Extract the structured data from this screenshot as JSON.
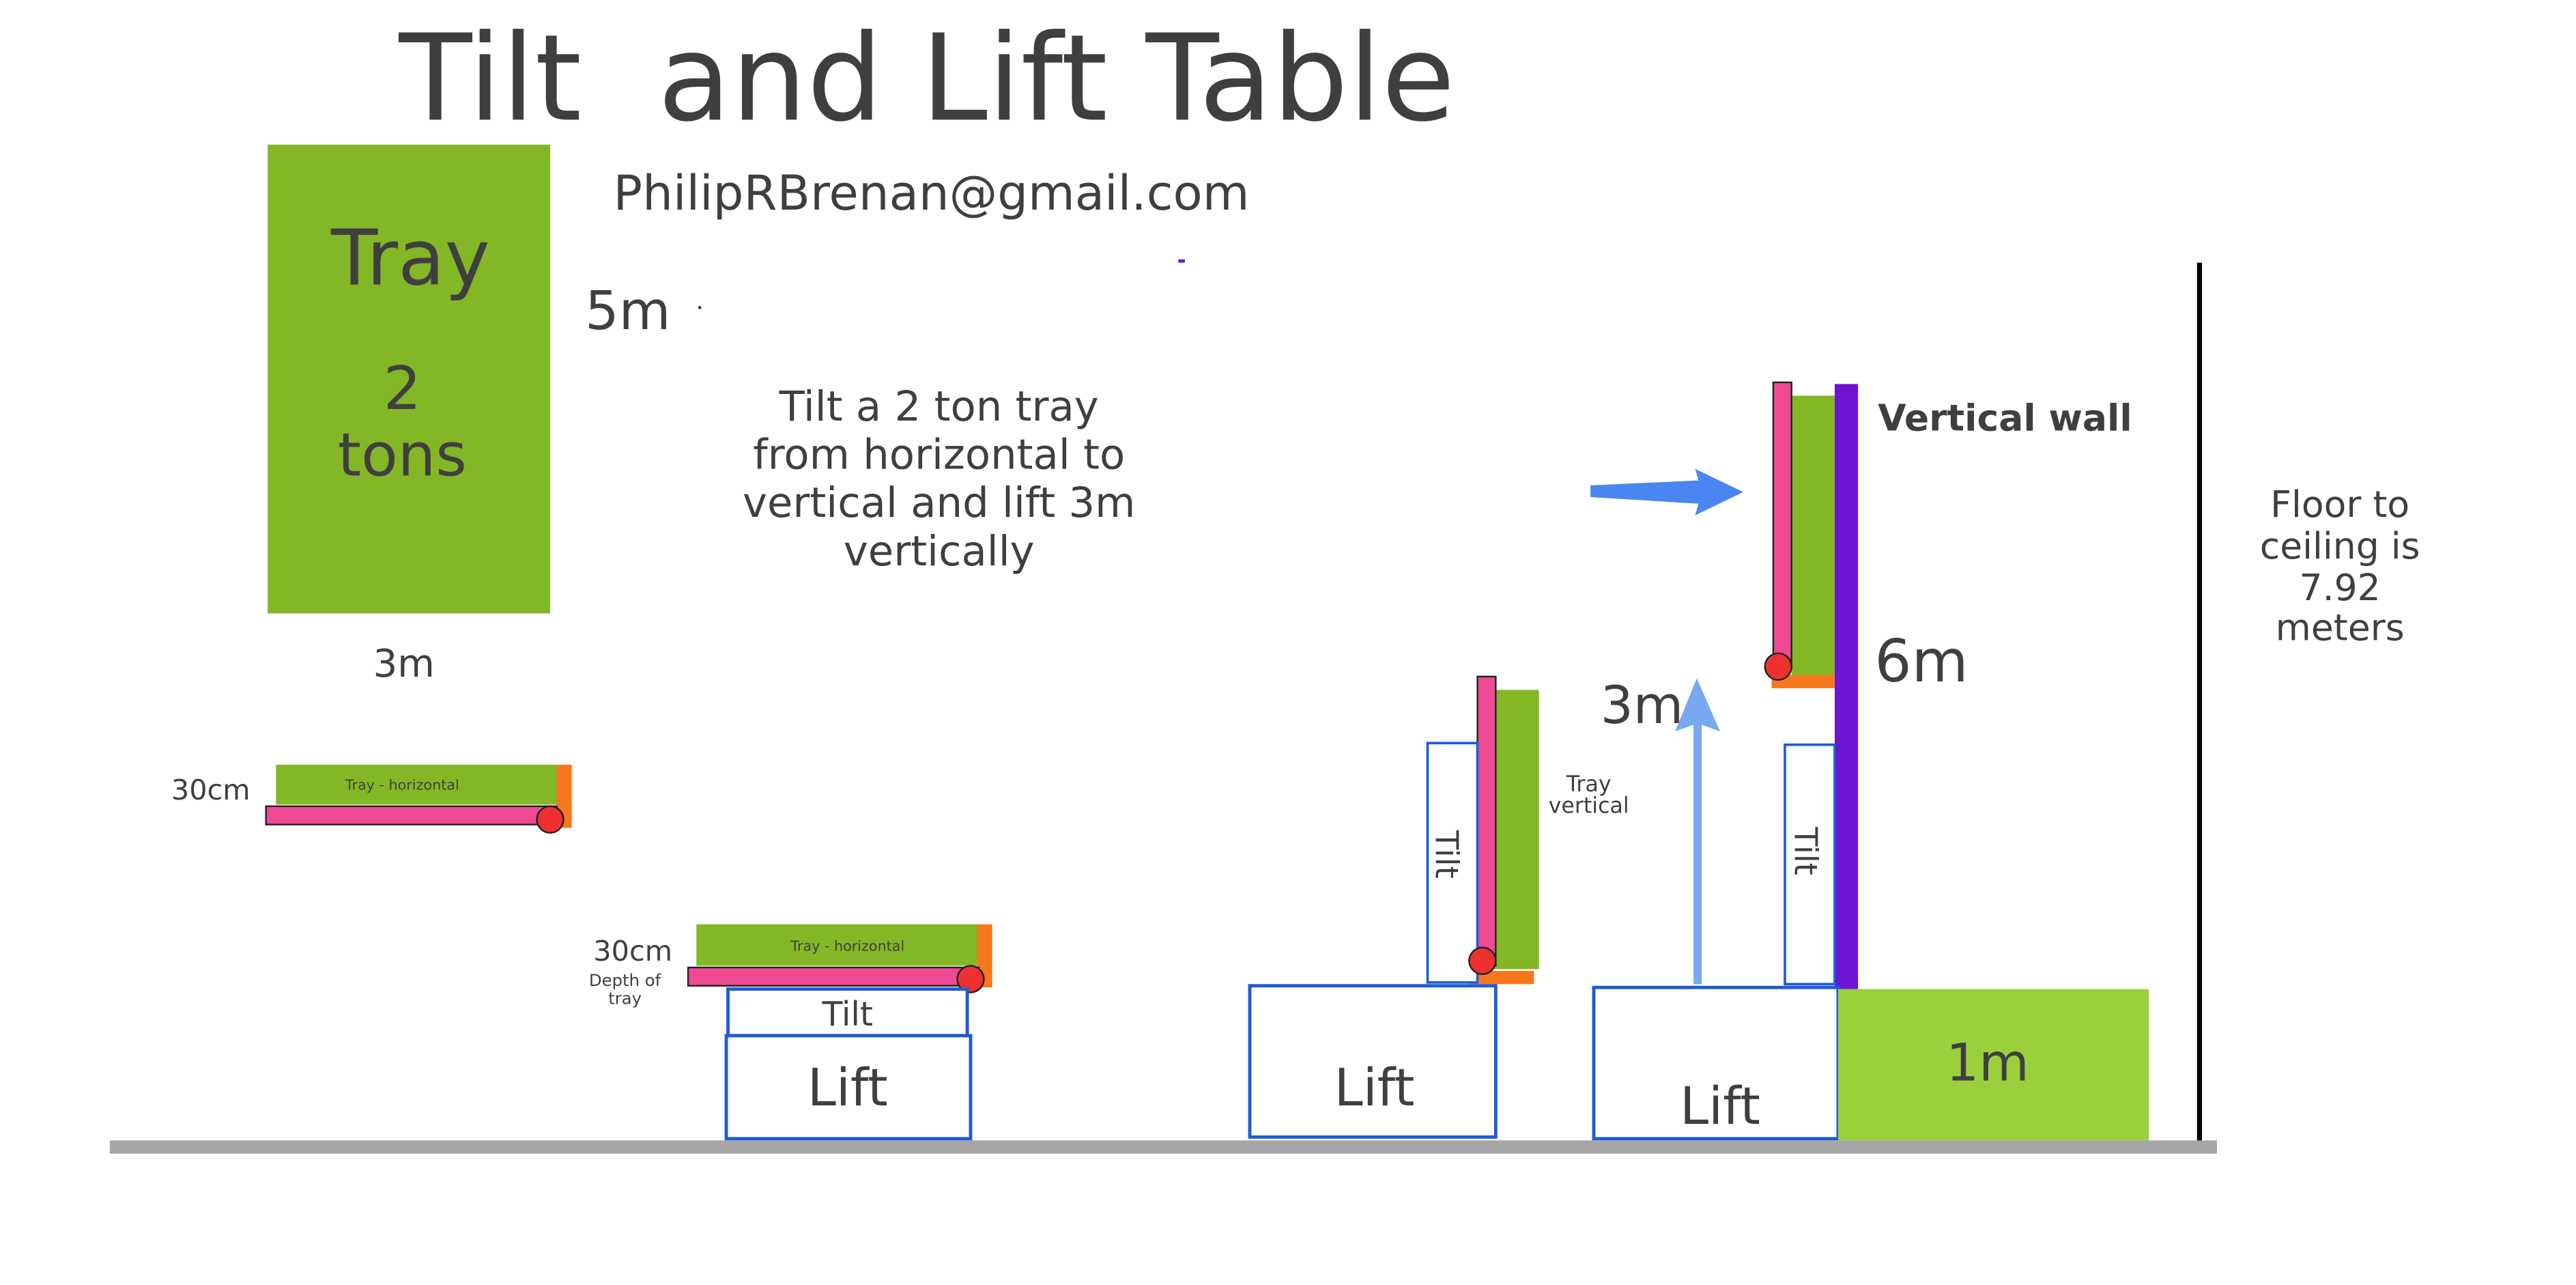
{
  "title": "Tilt  and Lift Table",
  "email": "PhilipRBrenan@gmail.com",
  "description_lines": [
    "Tilt a 2 ton tray",
    "from horizontal to",
    "vertical and lift 3m",
    "vertically"
  ],
  "tray": {
    "label": "Tray",
    "weight_lines": [
      "2",
      "tons"
    ],
    "height_label": "5m",
    "width_label": "3m",
    "depth_label": "30cm",
    "horizontal_label": "Tray - horizontal",
    "vertical_label_lines": [
      "Tray",
      "vertical"
    ]
  },
  "stage2": {
    "depth_label": "30cm",
    "depth_caption_lines": [
      "Depth of",
      "tray"
    ],
    "tilt_label": "Tilt",
    "lift_label": "Lift"
  },
  "stage3": {
    "tilt_label": "Tilt",
    "lift_label": "Lift"
  },
  "stage4": {
    "lift_height_label": "3m",
    "wall_label": "Vertical wall",
    "wall_height_label": "6m",
    "tilt_label": "Tilt",
    "lift_label": "Lift",
    "platform_label": "1m"
  },
  "ceiling_note_lines": [
    "Floor to",
    "ceiling is",
    "7.92",
    "meters"
  ],
  "colors": {
    "tray_green": "#84b725",
    "platform_green": "#9bcf3c",
    "pink": "#ee4a93",
    "orange": "#f7781e",
    "red_pivot": "#ee3030",
    "blue_outline": "#1e5bd8",
    "blue_arrow": "#4a86f0",
    "light_blue_arrow": "#78a8f2",
    "purple_wall": "#6d14d2",
    "floor_gray": "#a6a6a6",
    "text_dark": "#3f3f3f"
  }
}
